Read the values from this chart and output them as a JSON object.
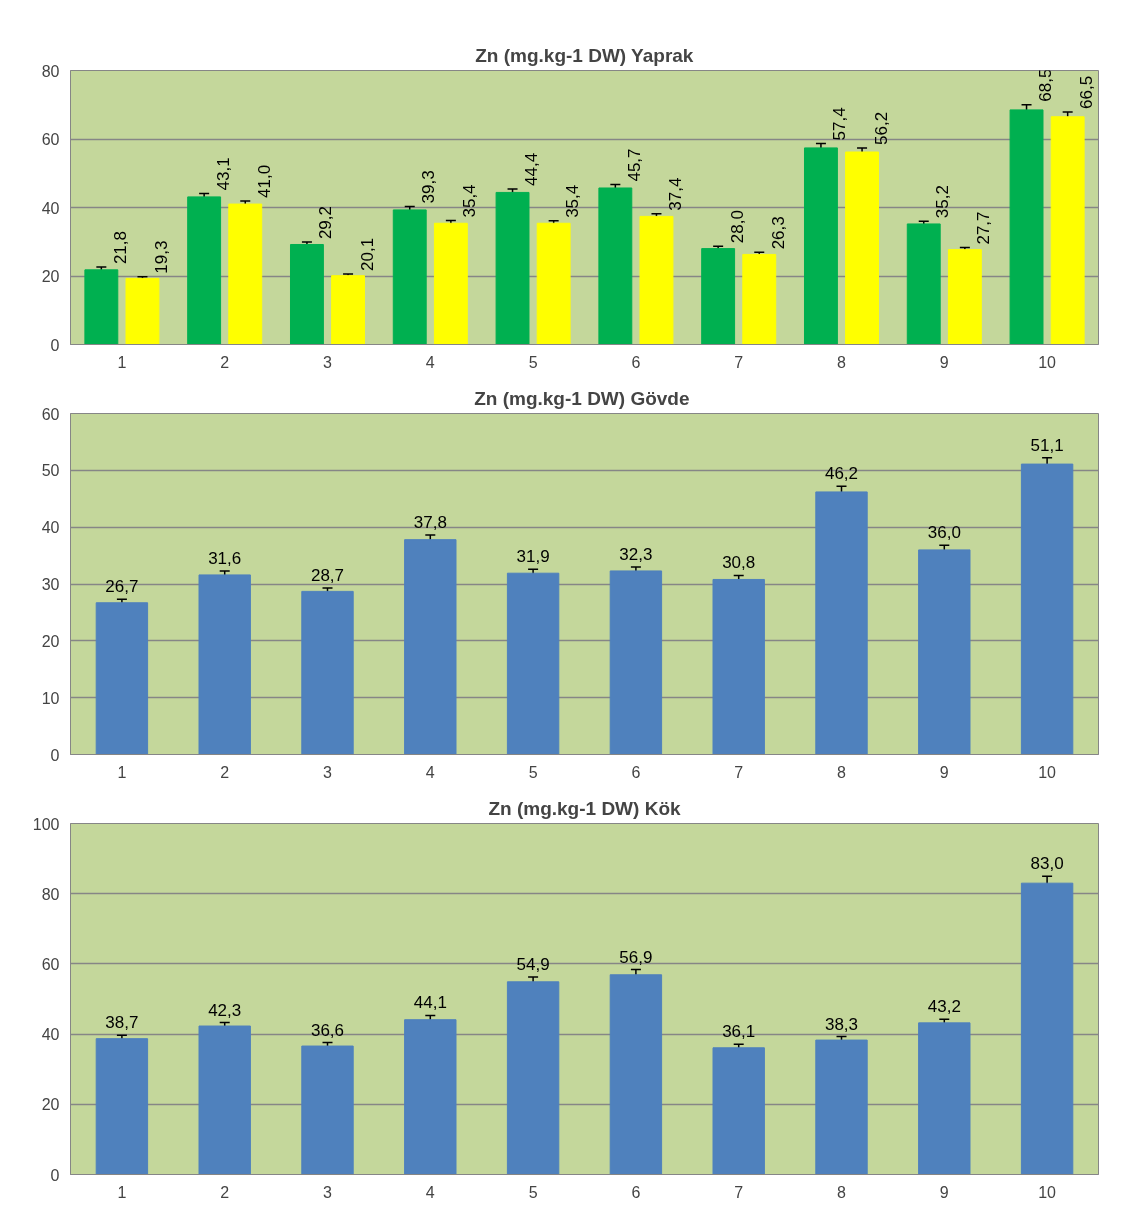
{
  "chart_data": [
    {
      "type": "bar",
      "title": "Zn (mg.kg-1 DW) Yaprak",
      "categories": [
        "1",
        "2",
        "3",
        "4",
        "5",
        "6",
        "7",
        "8",
        "9",
        "10"
      ],
      "ylim": [
        0,
        80
      ],
      "yticks": [
        0,
        20,
        40,
        60,
        80
      ],
      "grid": "y",
      "series": [
        {
          "color": "#00b050",
          "values": [
            21.8,
            43.1,
            29.2,
            39.3,
            44.4,
            45.7,
            28.0,
            57.4,
            35.2,
            68.5
          ],
          "errors": [
            0.8,
            1.0,
            0.7,
            1.0,
            1.0,
            1.0,
            0.7,
            1.3,
            0.8,
            1.5
          ],
          "value_labels": [
            "21,8",
            "43,1",
            "29,2",
            "39,3",
            "44,4",
            "45,7",
            "28,0",
            "57,4",
            "35,2",
            "68,5"
          ]
        },
        {
          "color": "#ffff00",
          "values": [
            19.3,
            41.0,
            20.1,
            35.4,
            35.4,
            37.4,
            26.3,
            56.2,
            27.7,
            66.5
          ],
          "errors": [
            0.5,
            0.9,
            0.5,
            0.8,
            0.7,
            0.8,
            0.6,
            1.2,
            0.6,
            1.4
          ],
          "value_labels": [
            "19,3",
            "41,0",
            "20,1",
            "35,4",
            "35,4",
            "37,4",
            "26,3",
            "56,2",
            "27,7",
            "66,5"
          ]
        }
      ]
    },
    {
      "type": "bar",
      "title": "Zn (mg.kg-1  DW) Gövde",
      "categories": [
        "1",
        "2",
        "3",
        "4",
        "5",
        "6",
        "7",
        "8",
        "9",
        "10"
      ],
      "ylim": [
        0,
        60
      ],
      "yticks": [
        0,
        10,
        20,
        30,
        40,
        50,
        60
      ],
      "grid": "y",
      "series": [
        {
          "color": "#4f81bd",
          "values": [
            26.7,
            31.6,
            28.7,
            37.8,
            31.9,
            32.3,
            30.8,
            46.2,
            36.0,
            51.1
          ],
          "errors": [
            0.6,
            0.7,
            0.6,
            0.8,
            0.7,
            0.7,
            0.7,
            1.0,
            0.8,
            1.1
          ],
          "value_labels": [
            "26,7",
            "31,6",
            "28,7",
            "37,8",
            "31,9",
            "32,3",
            "30,8",
            "46,2",
            "36,0",
            "51,1"
          ]
        }
      ]
    },
    {
      "type": "bar",
      "title": "Zn (mg.kg-1 DW) Kök",
      "categories": [
        "1",
        "2",
        "3",
        "4",
        "5",
        "6",
        "7",
        "8",
        "9",
        "10"
      ],
      "ylim": [
        0,
        100
      ],
      "yticks": [
        0,
        20,
        40,
        60,
        80,
        100
      ],
      "grid": "y",
      "series": [
        {
          "color": "#4f81bd",
          "values": [
            38.7,
            42.3,
            36.6,
            44.1,
            54.9,
            56.9,
            36.1,
            38.3,
            43.2,
            83.0
          ],
          "errors": [
            1.0,
            1.0,
            1.0,
            1.2,
            1.4,
            1.5,
            1.0,
            1.0,
            1.0,
            2.0
          ],
          "value_labels": [
            "38,7",
            "42,3",
            "36,6",
            "44,1",
            "54,9",
            "56,9",
            "36,1",
            "38,3",
            "43,2",
            "83,0"
          ]
        }
      ]
    }
  ]
}
